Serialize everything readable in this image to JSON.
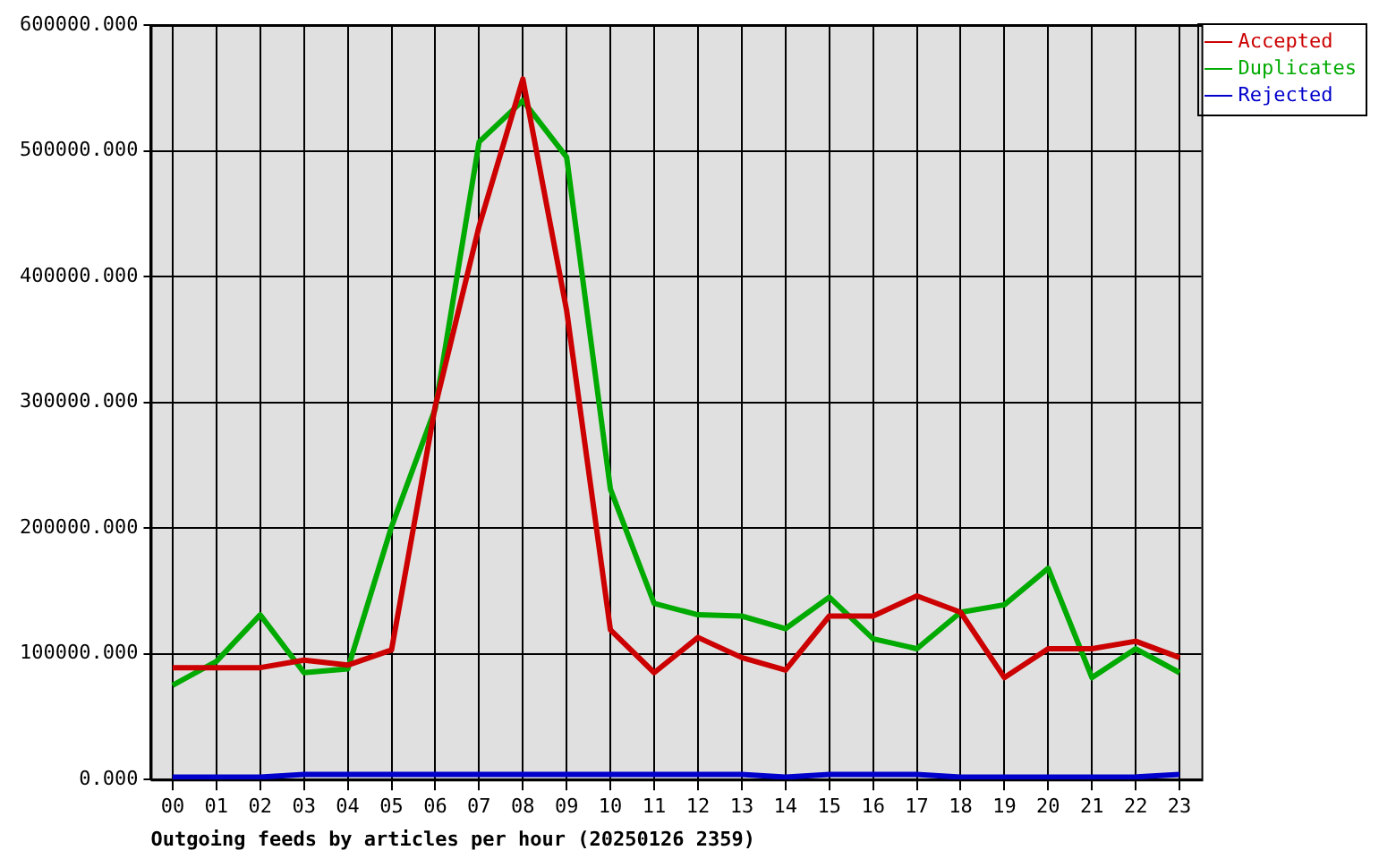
{
  "chart_data": {
    "type": "line",
    "xlabel": "Outgoing feeds by articles per hour (20250126 2359)",
    "categories": [
      "00",
      "01",
      "02",
      "03",
      "04",
      "05",
      "06",
      "07",
      "08",
      "09",
      "10",
      "11",
      "12",
      "13",
      "14",
      "15",
      "16",
      "17",
      "18",
      "19",
      "20",
      "21",
      "22",
      "23"
    ],
    "series": [
      {
        "name": "Accepted",
        "color": "#cc0000",
        "values": [
          89000,
          89000,
          89000,
          95000,
          91000,
          103000,
          297000,
          440000,
          557000,
          373000,
          119000,
          85000,
          113000,
          97000,
          87000,
          130000,
          130000,
          146000,
          133000,
          81000,
          104000,
          104000,
          110000,
          97000
        ]
      },
      {
        "name": "Duplicates",
        "color": "#00aa00",
        "values": [
          75000,
          94000,
          131000,
          85000,
          88000,
          201000,
          295000,
          507000,
          540000,
          495000,
          231000,
          140000,
          131000,
          130000,
          120000,
          145000,
          112000,
          104000,
          133000,
          139000,
          168000,
          81000,
          104000,
          85000
        ]
      },
      {
        "name": "Rejected",
        "color": "#0000cc",
        "values": [
          2000,
          2000,
          2000,
          4000,
          4000,
          4000,
          4000,
          4000,
          4000,
          4000,
          4000,
          4000,
          4000,
          4000,
          2000,
          4000,
          4000,
          4000,
          2000,
          2000,
          2000,
          2000,
          2000,
          4000
        ]
      }
    ],
    "ylim": [
      0,
      600000
    ],
    "yticks": [
      {
        "value": 0,
        "label": "0.000"
      },
      {
        "value": 100000,
        "label": "100000.000"
      },
      {
        "value": 200000,
        "label": "200000.000"
      },
      {
        "value": 300000,
        "label": "300000.000"
      },
      {
        "value": 400000,
        "label": "400000.000"
      },
      {
        "value": 500000,
        "label": "500000.000"
      },
      {
        "value": 600000,
        "label": "600000.000"
      }
    ],
    "grid": true,
    "legend": "top right",
    "marker": "none",
    "line_style": "solid"
  }
}
